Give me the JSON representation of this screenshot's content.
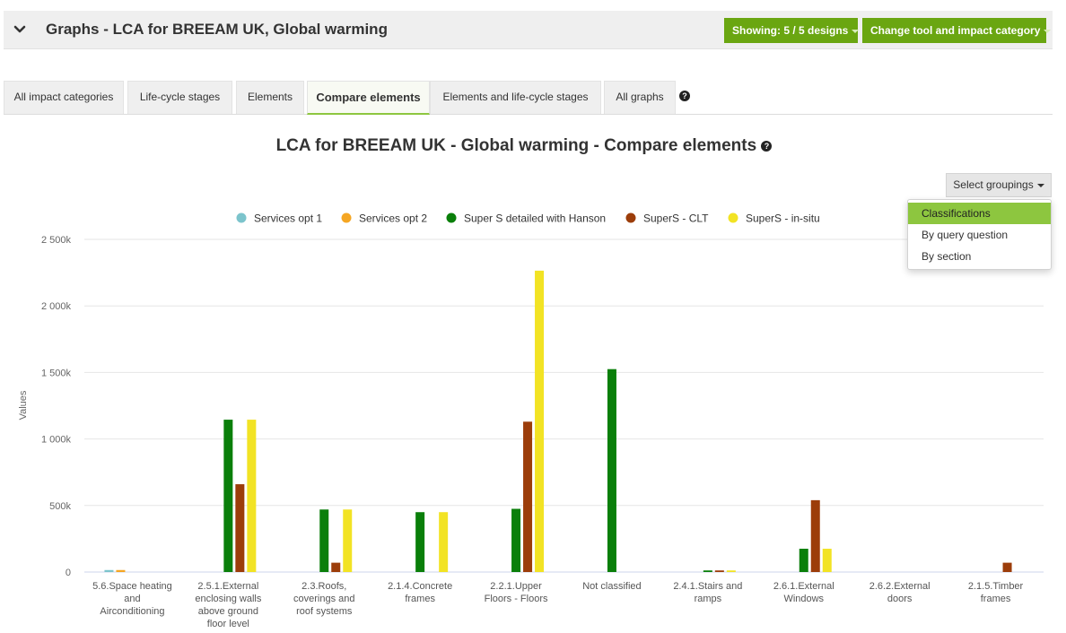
{
  "header": {
    "title": "Graphs - LCA for BREEAM UK, Global warming",
    "showing_label": "Showing: 5 / 5 designs",
    "change_label": "Change tool and impact category"
  },
  "tabs": [
    {
      "label": "All impact categories",
      "active": false
    },
    {
      "label": "Life-cycle stages",
      "active": false
    },
    {
      "label": "Elements",
      "active": false
    },
    {
      "label": "Compare elements",
      "active": true
    },
    {
      "label": "Elements and life-cycle stages",
      "active": false
    },
    {
      "label": "All graphs",
      "active": false
    }
  ],
  "groupings": {
    "button_label": "Select groupings",
    "options": [
      "Classifications",
      "By query question",
      "By section"
    ],
    "selected": "Classifications"
  },
  "chart_data": {
    "type": "bar",
    "title": "LCA for BREEAM UK - Global warming - Compare elements",
    "ylabel": "Values",
    "xlabel": "",
    "ylim": [
      0,
      2500000
    ],
    "yticks": [
      0,
      500000,
      1000000,
      1500000,
      2000000,
      2500000
    ],
    "ytick_labels": [
      "0",
      "500k",
      "1 000k",
      "1 500k",
      "2 000k",
      "2 500k"
    ],
    "grid": true,
    "legend_position": "top",
    "categories": [
      "5.6.Space heating and Airconditioning",
      "2.5.1.External enclosing walls above ground floor level",
      "2.3.Roofs, coverings and roof systems",
      "2.1.4.Concrete frames",
      "2.2.1.Upper Floors - Floors",
      "Not classified",
      "2.4.1.Stairs and ramps",
      "2.6.1.External Windows",
      "2.6.2.External doors",
      "2.1.5.Timber frames"
    ],
    "category_lines": [
      [
        "5.6.Space heating",
        "and",
        "Airconditioning"
      ],
      [
        "2.5.1.External",
        "enclosing walls",
        "above ground",
        "floor level"
      ],
      [
        "2.3.Roofs,",
        "coverings and",
        "roof systems"
      ],
      [
        "2.1.4.Concrete",
        "frames"
      ],
      [
        "2.2.1.Upper",
        "Floors - Floors"
      ],
      [
        "Not classified"
      ],
      [
        "2.4.1.Stairs and",
        "ramps"
      ],
      [
        "2.6.1.External",
        "Windows"
      ],
      [
        "2.6.2.External",
        "doors"
      ],
      [
        "2.1.5.Timber",
        "frames"
      ]
    ],
    "series": [
      {
        "name": "Services opt 1",
        "color": "#7cc4cc",
        "values": [
          15000,
          0,
          0,
          0,
          0,
          0,
          0,
          0,
          0,
          0
        ]
      },
      {
        "name": "Services opt 2",
        "color": "#f5a623",
        "values": [
          15000,
          0,
          0,
          0,
          0,
          0,
          0,
          0,
          0,
          0
        ]
      },
      {
        "name": "Super S detailed with Hanson",
        "color": "#0a7f0a",
        "values": [
          0,
          1145000,
          470000,
          450000,
          475000,
          1525000,
          12000,
          175000,
          0,
          0
        ]
      },
      {
        "name": "SuperS - CLT",
        "color": "#9c3d0a",
        "values": [
          0,
          660000,
          70000,
          0,
          1130000,
          0,
          12000,
          540000,
          0,
          70000
        ]
      },
      {
        "name": "SuperS - in-situ",
        "color": "#f2e324",
        "values": [
          0,
          1145000,
          470000,
          450000,
          2265000,
          0,
          12000,
          175000,
          0,
          0
        ]
      }
    ]
  }
}
